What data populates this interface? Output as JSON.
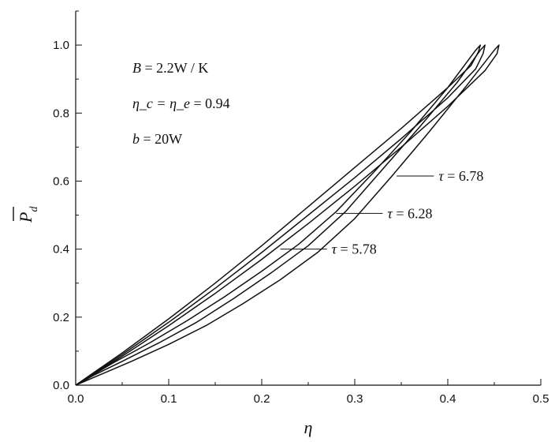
{
  "chart_data": {
    "type": "line",
    "title": "",
    "xlabel": "η",
    "ylabel": "P̄d",
    "ylabel_parts": {
      "symbol": "P",
      "subscript": "d"
    },
    "xlim": [
      0.0,
      0.5
    ],
    "ylim": [
      0.0,
      1.1
    ],
    "x_ticks": [
      "0.0",
      "0.1",
      "0.2",
      "0.3",
      "0.4",
      "0.5"
    ],
    "y_ticks": [
      "0.0",
      "0.2",
      "0.4",
      "0.6",
      "0.8",
      "1.0"
    ],
    "grid": false,
    "legend": "none",
    "parameters": [
      {
        "lhs": "B",
        "rhs": "2.2W / K"
      },
      {
        "lhs": "η_c = η_e",
        "rhs": "0.94"
      },
      {
        "lhs": "b",
        "rhs": "20W"
      }
    ],
    "series": [
      {
        "label": "τ = 6.78",
        "x": [
          0.0,
          0.05,
          0.1,
          0.15,
          0.2,
          0.25,
          0.3,
          0.35,
          0.4,
          0.44,
          0.453,
          0.455,
          0.45,
          0.42,
          0.38,
          0.34,
          0.3,
          0.26,
          0.22,
          0.18,
          0.14,
          0.1,
          0.06,
          0.03,
          0.0
        ],
        "y": [
          0.0,
          0.085,
          0.175,
          0.27,
          0.37,
          0.475,
          0.585,
          0.7,
          0.82,
          0.925,
          0.975,
          1.0,
          0.985,
          0.88,
          0.745,
          0.615,
          0.49,
          0.39,
          0.31,
          0.24,
          0.175,
          0.12,
          0.07,
          0.035,
          0.0
        ]
      },
      {
        "label": "τ = 6.28",
        "x": [
          0.0,
          0.05,
          0.1,
          0.15,
          0.2,
          0.25,
          0.3,
          0.35,
          0.4,
          0.43,
          0.438,
          0.44,
          0.435,
          0.41,
          0.37,
          0.33,
          0.29,
          0.25,
          0.21,
          0.17,
          0.13,
          0.09,
          0.05,
          0.02,
          0.0
        ],
        "y": [
          0.0,
          0.09,
          0.185,
          0.285,
          0.39,
          0.5,
          0.61,
          0.725,
          0.845,
          0.93,
          0.975,
          1.0,
          0.985,
          0.89,
          0.76,
          0.635,
          0.51,
          0.41,
          0.33,
          0.255,
          0.185,
          0.125,
          0.07,
          0.03,
          0.0
        ]
      },
      {
        "label": "τ = 5.78",
        "x": [
          0.0,
          0.05,
          0.1,
          0.15,
          0.2,
          0.25,
          0.3,
          0.35,
          0.4,
          0.425,
          0.433,
          0.435,
          0.43,
          0.4,
          0.36,
          0.32,
          0.28,
          0.24,
          0.2,
          0.16,
          0.12,
          0.08,
          0.04,
          0.015,
          0.0
        ],
        "y": [
          0.0,
          0.095,
          0.195,
          0.3,
          0.41,
          0.525,
          0.64,
          0.755,
          0.875,
          0.94,
          0.98,
          1.0,
          0.985,
          0.875,
          0.745,
          0.625,
          0.51,
          0.415,
          0.335,
          0.26,
          0.19,
          0.125,
          0.065,
          0.025,
          0.0
        ]
      }
    ],
    "callouts": [
      {
        "label": "τ = 6.78",
        "greek": "τ",
        "value": "= 6.78",
        "from": [
          0.345,
          0.615
        ],
        "to": [
          0.385,
          0.615
        ]
      },
      {
        "label": "τ = 6.28",
        "greek": "τ",
        "value": "= 6.28",
        "from": [
          0.28,
          0.505
        ],
        "to": [
          0.33,
          0.505
        ]
      },
      {
        "label": "τ = 5.78",
        "greek": "τ",
        "value": "= 5.78",
        "from": [
          0.22,
          0.4
        ],
        "to": [
          0.27,
          0.4
        ]
      }
    ]
  }
}
